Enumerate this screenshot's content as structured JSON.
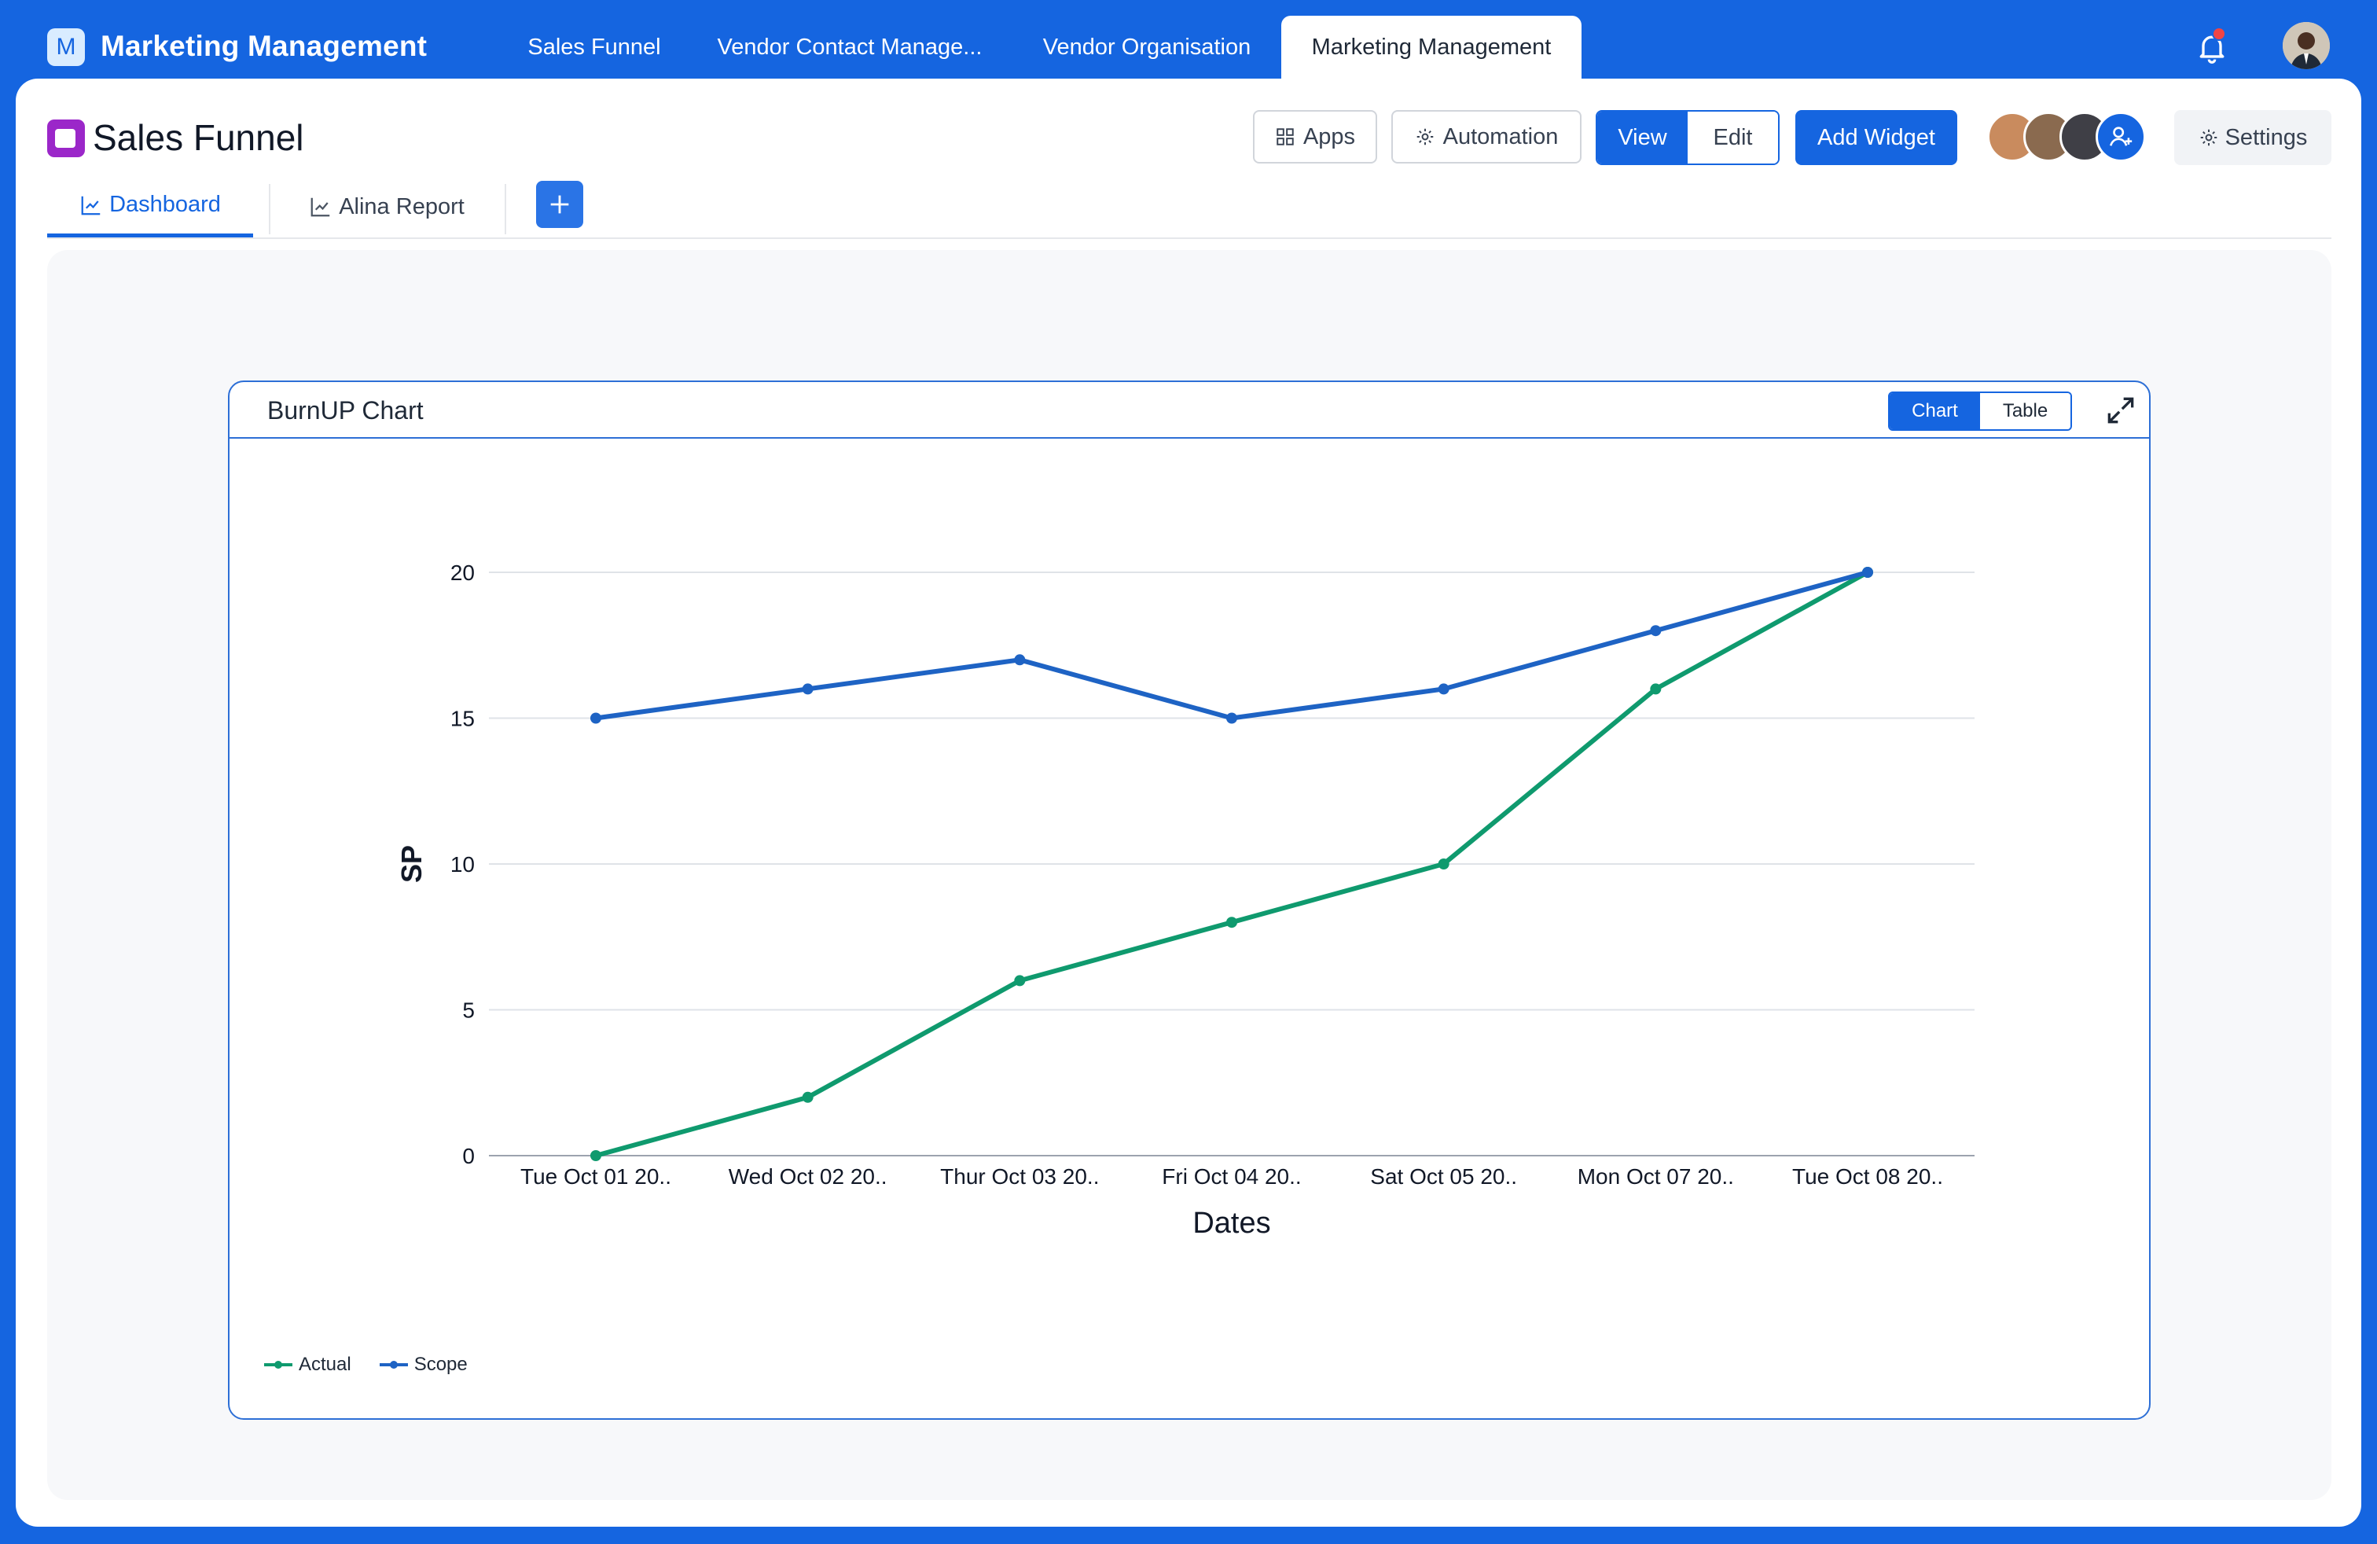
{
  "app": {
    "logo_letter": "M",
    "title": "Marketing Management"
  },
  "top_tabs": [
    {
      "label": "Sales Funnel"
    },
    {
      "label": "Vendor Contact Manage..."
    },
    {
      "label": "Vendor Organisation"
    },
    {
      "label": "Marketing Management"
    }
  ],
  "page": {
    "title": "Sales Funnel",
    "apps_label": "Apps",
    "automation_label": "Automation",
    "view_label": "View",
    "edit_label": "Edit",
    "add_widget_label": "Add Widget",
    "settings_label": "Settings"
  },
  "sub_tabs": [
    {
      "label": "Dashboard"
    },
    {
      "label": "Alina Report"
    }
  ],
  "widget": {
    "title": "BurnUP Chart",
    "toggle_chart": "Chart",
    "toggle_table": "Table"
  },
  "colors": {
    "brand": "#1565e0",
    "actual": "#0f9a6e",
    "scope": "#1e63c4"
  },
  "chart_data": {
    "type": "line",
    "xlabel": "Dates",
    "ylabel": "SP",
    "ylim": [
      0,
      20
    ],
    "yticks": [
      0,
      5,
      10,
      15,
      20
    ],
    "categories": [
      "Tue Oct 01 20..",
      "Wed Oct 02 20..",
      "Thur Oct 03 20..",
      "Fri Oct 04 20..",
      "Sat Oct 05 20..",
      "Mon Oct 07 20..",
      "Tue Oct 08 20.."
    ],
    "series": [
      {
        "name": "Actual",
        "values": [
          0,
          2,
          6,
          8,
          10,
          16,
          20
        ]
      },
      {
        "name": "Scope",
        "values": [
          15,
          16,
          17,
          15,
          16,
          18,
          20
        ]
      }
    ],
    "grid": true,
    "legend": "bottom-left"
  }
}
